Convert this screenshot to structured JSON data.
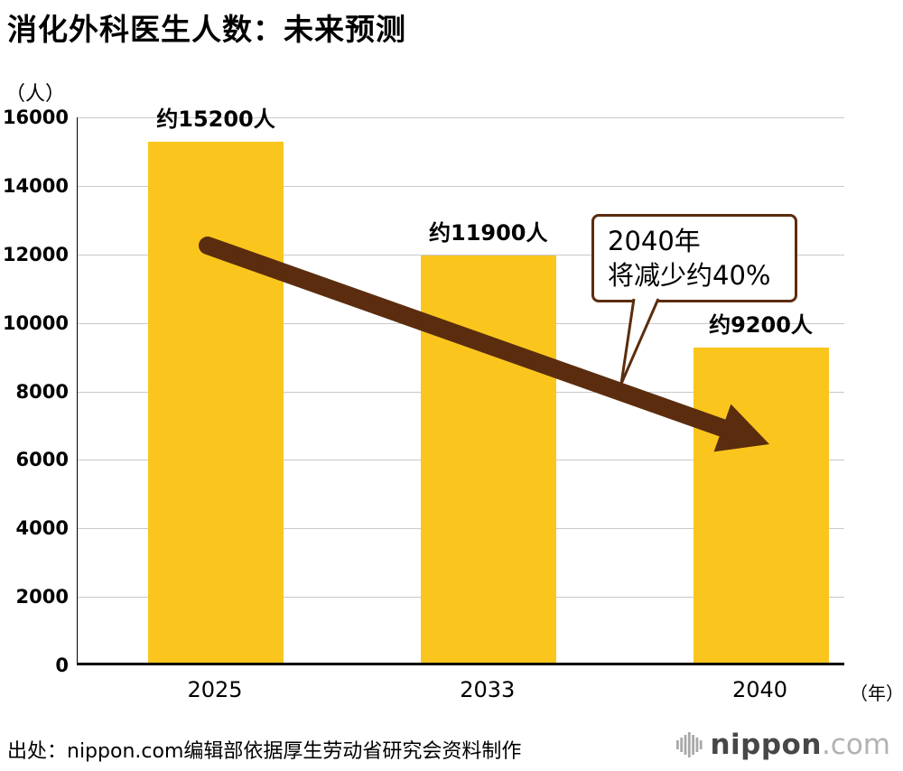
{
  "chart_data": {
    "type": "bar",
    "title": "消化外科医生人数：未来预测",
    "y_axis_unit": "（人）",
    "x_axis_unit": "（年）",
    "categories": [
      "2025",
      "2033",
      "2040"
    ],
    "values": [
      15200,
      11900,
      9200
    ],
    "bar_value_labels": [
      "约15200人",
      "约11900人",
      "约9200人"
    ],
    "ylim": [
      0,
      16000
    ],
    "ytick_step": 2000,
    "yticks": [
      0,
      2000,
      4000,
      6000,
      8000,
      10000,
      12000,
      14000,
      16000
    ],
    "grid": true,
    "legend": "none",
    "bar_color": "#FAC61E",
    "arrow_color": "#5B2D0E",
    "annotation": {
      "line1": "2040年",
      "line2": "将减少约40%"
    }
  },
  "footer": {
    "source": "出处：nippon.com编辑部依据厚生劳动省研究会资料制作",
    "logo_name": "nippon",
    "logo_tld": ".com"
  }
}
